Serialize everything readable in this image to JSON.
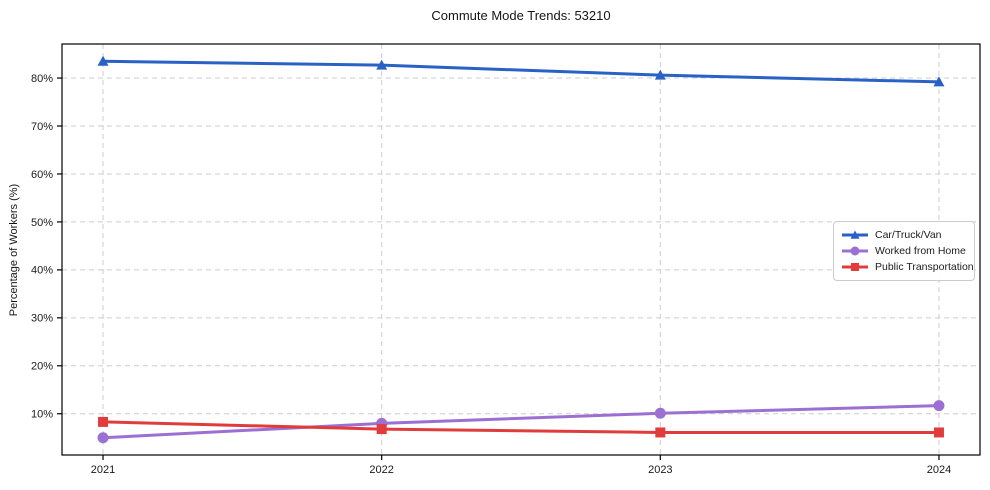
{
  "chart_data": {
    "type": "line",
    "title": "Commute Mode Trends: 53210",
    "xlabel": "",
    "ylabel": "Percentage of Workers (%)",
    "categories": [
      "2021",
      "2022",
      "2023",
      "2024"
    ],
    "series": [
      {
        "name": "Car/Truck/Van",
        "color": "#2a61c5",
        "marker": "triangle",
        "values": [
          83.5,
          82.7,
          80.6,
          79.2
        ]
      },
      {
        "name": "Worked from Home",
        "color": "#9b70d2",
        "marker": "circle",
        "values": [
          5.0,
          8.0,
          10.1,
          11.7
        ]
      },
      {
        "name": "Public Transportation",
        "color": "#e13c3c",
        "marker": "square",
        "values": [
          8.3,
          6.8,
          6.1,
          6.1
        ]
      }
    ],
    "yticks": [
      10,
      20,
      30,
      40,
      50,
      60,
      70,
      80
    ],
    "ytick_suffix": "%",
    "ylim": [
      1.4,
      87.1
    ],
    "grid": true,
    "grid_color": "#cccccc",
    "axis_color": "#000000",
    "tick_label_color": "#1a1a1a",
    "legend_position": "center right"
  }
}
